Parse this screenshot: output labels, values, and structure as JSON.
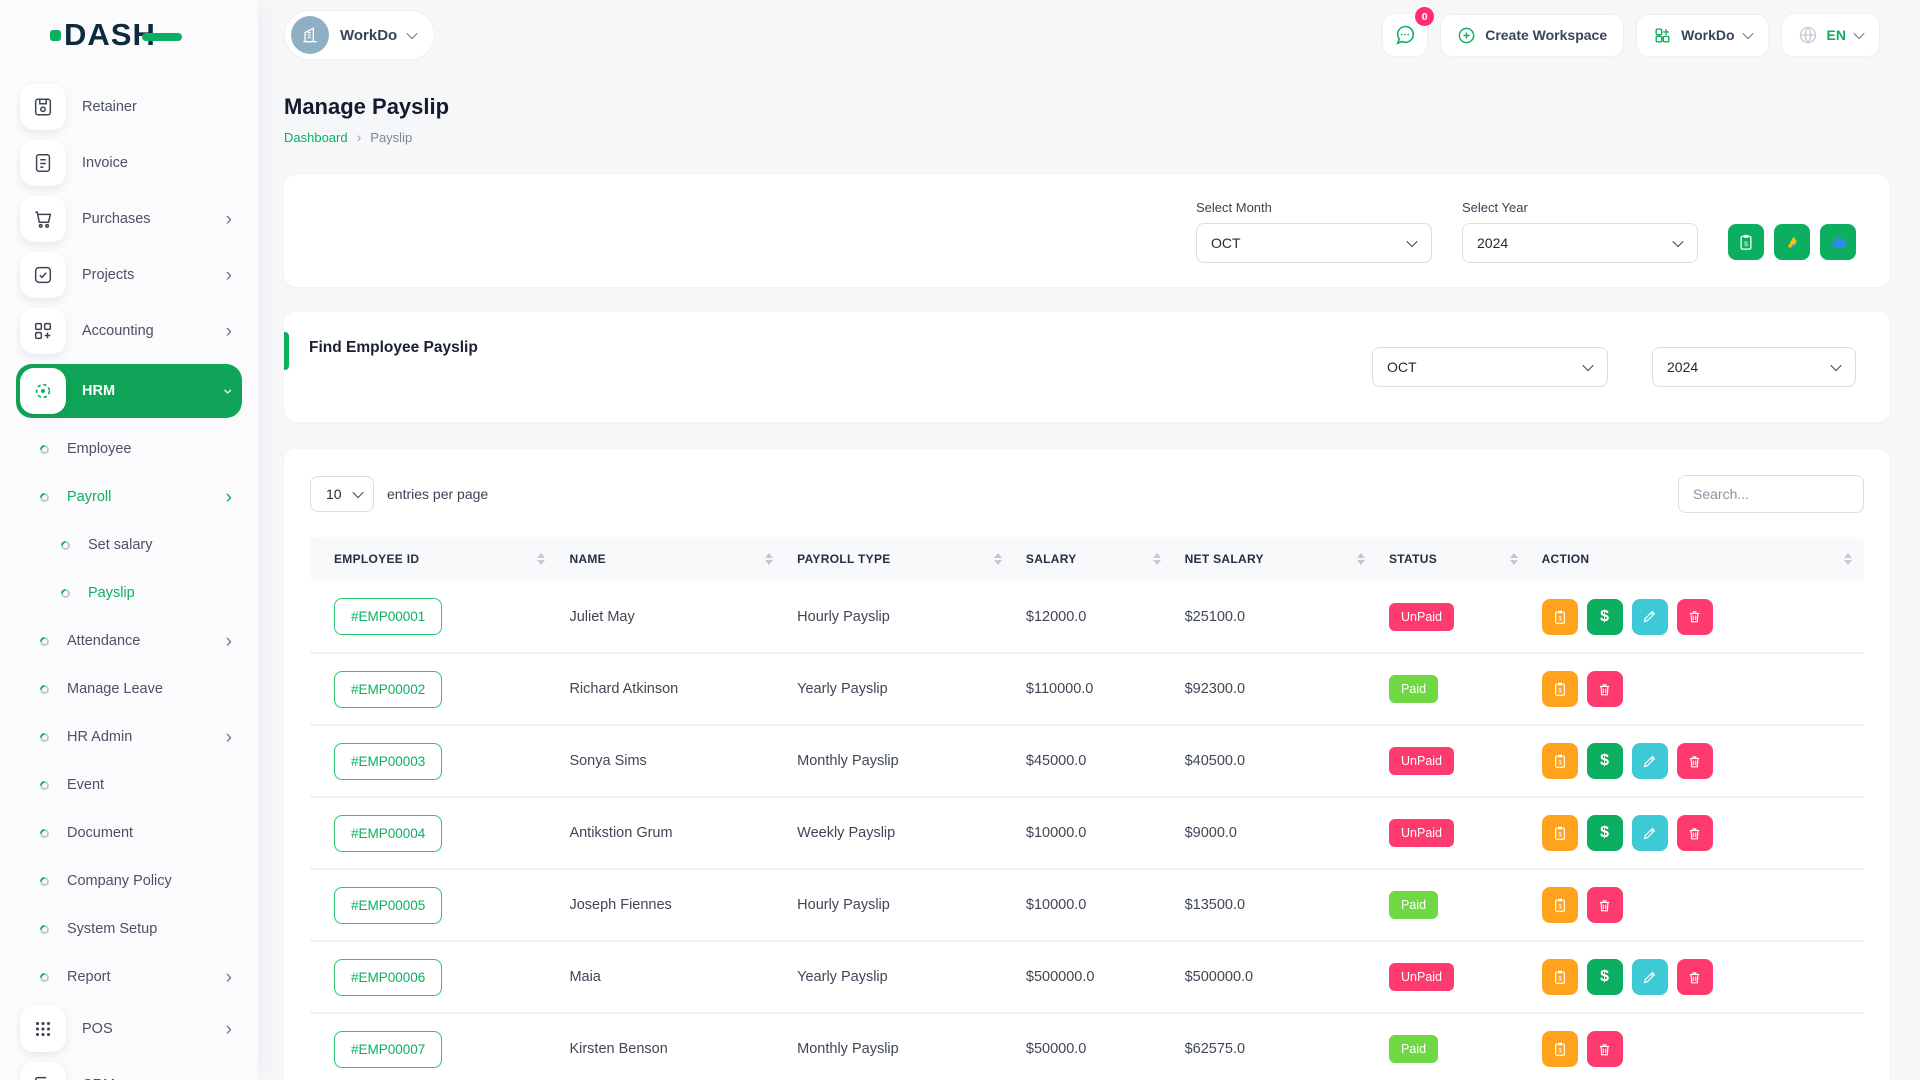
{
  "colors": {
    "accent": "#0caf60",
    "accent_dark": "#0fa457",
    "paid": "#6fd944",
    "unpaid": "#ff3a6e",
    "warning": "#ffa21d",
    "info": "#3ec9d6",
    "badge_pink": "#ff2d6f",
    "avatar_bg": "#8fafc4",
    "logo_navy": "#0d2b3e",
    "body_bg": "#f6f7f9",
    "sidebar_bg": "#fbfbfd",
    "thead_bg": "#f8f9fb",
    "border": "#d9dee5",
    "text": "#3f4756"
  },
  "brand": {
    "logo_text": "DASH"
  },
  "topbar": {
    "workspace_label": "WorkDo",
    "chat_badge": "0",
    "create_workspace_label": "Create Workspace",
    "workdo_label": "WorkDo",
    "language": "EN"
  },
  "sidebar": {
    "items": [
      {
        "kind": "tile",
        "icon": "save",
        "label": "Retainer"
      },
      {
        "kind": "tile",
        "icon": "file",
        "label": "Invoice"
      },
      {
        "kind": "tile",
        "icon": "cart",
        "label": "Purchases",
        "chevron": true
      },
      {
        "kind": "tile",
        "icon": "check",
        "label": "Projects",
        "chevron": true
      },
      {
        "kind": "tile",
        "icon": "gridplus",
        "label": "Accounting",
        "chevron": true
      },
      {
        "kind": "tile",
        "icon": "target",
        "label": "HRM",
        "chevron": true,
        "active": true
      },
      {
        "kind": "sub",
        "label": "Employee"
      },
      {
        "kind": "sub",
        "label": "Payroll",
        "chevron": true,
        "green": true
      },
      {
        "kind": "sub",
        "label": "Set salary",
        "indent2": true
      },
      {
        "kind": "sub",
        "label": "Payslip",
        "indent2": true,
        "green": true
      },
      {
        "kind": "sub",
        "label": "Attendance",
        "chevron": true
      },
      {
        "kind": "sub",
        "label": "Manage Leave"
      },
      {
        "kind": "sub",
        "label": "HR Admin",
        "chevron": true
      },
      {
        "kind": "sub",
        "label": "Event"
      },
      {
        "kind": "sub",
        "label": "Document"
      },
      {
        "kind": "sub",
        "label": "Company Policy"
      },
      {
        "kind": "sub",
        "label": "System Setup"
      },
      {
        "kind": "sub",
        "label": "Report",
        "chevron": true
      },
      {
        "kind": "tile",
        "icon": "pos",
        "label": "POS",
        "chevron": true
      },
      {
        "kind": "tile",
        "icon": "crm",
        "label": "CRM",
        "chevron": true
      }
    ]
  },
  "page": {
    "title": "Manage Payslip",
    "breadcrumb": [
      "Dashboard",
      "Payslip"
    ]
  },
  "filter": {
    "month_label": "Select Month",
    "month_value": "OCT",
    "year_label": "Select Year",
    "year_value": "2024"
  },
  "find_section": {
    "title": "Find Employee Payslip",
    "month_value": "OCT",
    "year_value": "2024"
  },
  "table_controls": {
    "page_size": "10",
    "entries_label": "entries per page",
    "search_placeholder": "Search..."
  },
  "table": {
    "columns": [
      "EMPLOYEE ID",
      "NAME",
      "PAYROLL TYPE",
      "SALARY",
      "NET SALARY",
      "STATUS",
      "ACTION"
    ],
    "row_actions": {
      "unpaid": [
        "payslip",
        "pay",
        "edit",
        "delete"
      ],
      "paid": [
        "payslip",
        "delete"
      ]
    },
    "rows": [
      {
        "id": "#EMP00001",
        "name": "Juliet May",
        "payroll_type": "Hourly Payslip",
        "salary": "$12000.0",
        "net_salary": "$25100.0",
        "status": "UnPaid"
      },
      {
        "id": "#EMP00002",
        "name": "Richard Atkinson",
        "payroll_type": "Yearly Payslip",
        "salary": "$110000.0",
        "net_salary": "$92300.0",
        "status": "Paid"
      },
      {
        "id": "#EMP00003",
        "name": "Sonya Sims",
        "payroll_type": "Monthly Payslip",
        "salary": "$45000.0",
        "net_salary": "$40500.0",
        "status": "UnPaid"
      },
      {
        "id": "#EMP00004",
        "name": "Antikstion Grum",
        "payroll_type": "Weekly Payslip",
        "salary": "$10000.0",
        "net_salary": "$9000.0",
        "status": "UnPaid"
      },
      {
        "id": "#EMP00005",
        "name": "Joseph Fiennes",
        "payroll_type": "Hourly Payslip",
        "salary": "$10000.0",
        "net_salary": "$13500.0",
        "status": "Paid"
      },
      {
        "id": "#EMP00006",
        "name": "Maia",
        "payroll_type": "Yearly Payslip",
        "salary": "$500000.0",
        "net_salary": "$500000.0",
        "status": "UnPaid"
      },
      {
        "id": "#EMP00007",
        "name": "Kirsten Benson",
        "payroll_type": "Monthly Payslip",
        "salary": "$50000.0",
        "net_salary": "$62575.0",
        "status": "Paid"
      }
    ]
  }
}
